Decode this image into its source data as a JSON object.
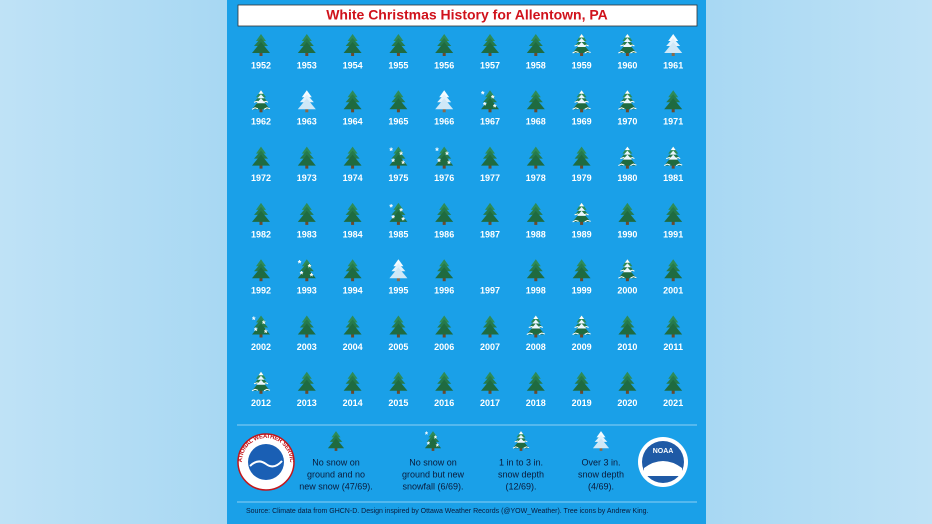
{
  "title": "White Christmas History for Allentown, PA",
  "grid": [
    {
      "year": "1952",
      "tree": 0
    },
    {
      "year": "1953",
      "tree": 0
    },
    {
      "year": "1954",
      "tree": 0
    },
    {
      "year": "1955",
      "tree": 0
    },
    {
      "year": "1956",
      "tree": 0
    },
    {
      "year": "1957",
      "tree": 0
    },
    {
      "year": "1958",
      "tree": 0
    },
    {
      "year": "1959",
      "tree": 2
    },
    {
      "year": "1960",
      "tree": 2
    },
    {
      "year": "1961",
      "tree": 3
    },
    {
      "year": "1962",
      "tree": 2
    },
    {
      "year": "1963",
      "tree": 3
    },
    {
      "year": "1964",
      "tree": 0
    },
    {
      "year": "1965",
      "tree": 0
    },
    {
      "year": "1966",
      "tree": 3
    },
    {
      "year": "1967",
      "tree": 1
    },
    {
      "year": "1968",
      "tree": 0
    },
    {
      "year": "1969",
      "tree": 2
    },
    {
      "year": "1970",
      "tree": 2
    },
    {
      "year": "1971",
      "tree": 0
    },
    {
      "year": "1972",
      "tree": 0
    },
    {
      "year": "1973",
      "tree": 0
    },
    {
      "year": "1974",
      "tree": 0
    },
    {
      "year": "1975",
      "tree": 1
    },
    {
      "year": "1976",
      "tree": 1
    },
    {
      "year": "1977",
      "tree": 0
    },
    {
      "year": "1978",
      "tree": 0
    },
    {
      "year": "1979",
      "tree": 0
    },
    {
      "year": "1980",
      "tree": 2
    },
    {
      "year": "1981",
      "tree": 2
    },
    {
      "year": "1982",
      "tree": 0
    },
    {
      "year": "1983",
      "tree": 0
    },
    {
      "year": "1984",
      "tree": 0
    },
    {
      "year": "1985",
      "tree": 1
    },
    {
      "year": "1986",
      "tree": 0
    },
    {
      "year": "1987",
      "tree": 0
    },
    {
      "year": "1988",
      "tree": 0
    },
    {
      "year": "1989",
      "tree": 2
    },
    {
      "year": "1990",
      "tree": 0
    },
    {
      "year": "1991",
      "tree": 0
    },
    {
      "year": "1992",
      "tree": 0
    },
    {
      "year": "1993",
      "tree": 1
    },
    {
      "year": "1994",
      "tree": 0
    },
    {
      "year": "1995",
      "tree": 3
    },
    {
      "year": "1996",
      "tree": 0
    },
    {
      "year": "1997",
      "tree": null
    },
    {
      "year": "1998",
      "tree": 0
    },
    {
      "year": "1999",
      "tree": 0
    },
    {
      "year": "2000",
      "tree": 2
    },
    {
      "year": "2001",
      "tree": 0
    },
    {
      "year": "2002",
      "tree": 1
    },
    {
      "year": "2003",
      "tree": 0
    },
    {
      "year": "2004",
      "tree": 0
    },
    {
      "year": "2005",
      "tree": 0
    },
    {
      "year": "2006",
      "tree": 0
    },
    {
      "year": "2007",
      "tree": 0
    },
    {
      "year": "2008",
      "tree": 2
    },
    {
      "year": "2009",
      "tree": 2
    },
    {
      "year": "2010",
      "tree": 0
    },
    {
      "year": "2011",
      "tree": 0
    },
    {
      "year": "2012",
      "tree": 2
    },
    {
      "year": "2013",
      "tree": 0
    },
    {
      "year": "2014",
      "tree": 0
    },
    {
      "year": "2015",
      "tree": 0
    },
    {
      "year": "2016",
      "tree": 0
    },
    {
      "year": "2017",
      "tree": 0
    },
    {
      "year": "2018",
      "tree": 0
    },
    {
      "year": "2019",
      "tree": 0
    },
    {
      "year": "2020",
      "tree": 0
    },
    {
      "year": "2021",
      "tree": 0
    }
  ],
  "legend": [
    {
      "lines": [
        "No snow on",
        "ground and no",
        "new snow (47/69)."
      ]
    },
    {
      "lines": [
        "No snow on",
        "ground but new",
        "snowfall (6/69)."
      ]
    },
    {
      "lines": [
        "1 in to 3 in.",
        "snow depth",
        "(12/69)."
      ]
    },
    {
      "lines": [
        "Over 3 in.",
        "snow depth",
        "(4/69)."
      ]
    }
  ],
  "logos": {
    "nws": "NATIONAL WEATHER SERVICE",
    "noaa": "NOAA"
  },
  "footer": "Source: Climate data from GHCN-D.   Design inspired by Ottawa Weather Records (@YOW_Weather). Tree icons by Andrew King."
}
